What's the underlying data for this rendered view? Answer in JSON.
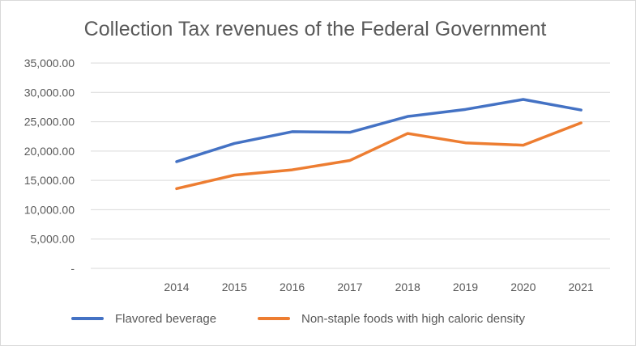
{
  "chart_data": {
    "type": "line",
    "title": "Collection Tax revenues of the Federal Government",
    "categories": [
      "2014",
      "2015",
      "2016",
      "2017",
      "2018",
      "2019",
      "2020",
      "2021"
    ],
    "y_ticks": [
      "-",
      "5,000.00",
      "10,000.00",
      "15,000.00",
      "20,000.00",
      "25,000.00",
      "30,000.00",
      "35,000.00"
    ],
    "ylim": [
      0,
      35000
    ],
    "grid": true,
    "legend_position": "bottom",
    "series": [
      {
        "name": "Flavored beverage",
        "color": "#4472c4",
        "values": [
          18200,
          21300,
          23300,
          23200,
          25900,
          27100,
          28800,
          27000
        ]
      },
      {
        "name": "Non-staple foods with high caloric density",
        "color": "#ed7d31",
        "values": [
          13600,
          15900,
          16800,
          18400,
          23000,
          21400,
          21000,
          24800
        ]
      }
    ]
  }
}
